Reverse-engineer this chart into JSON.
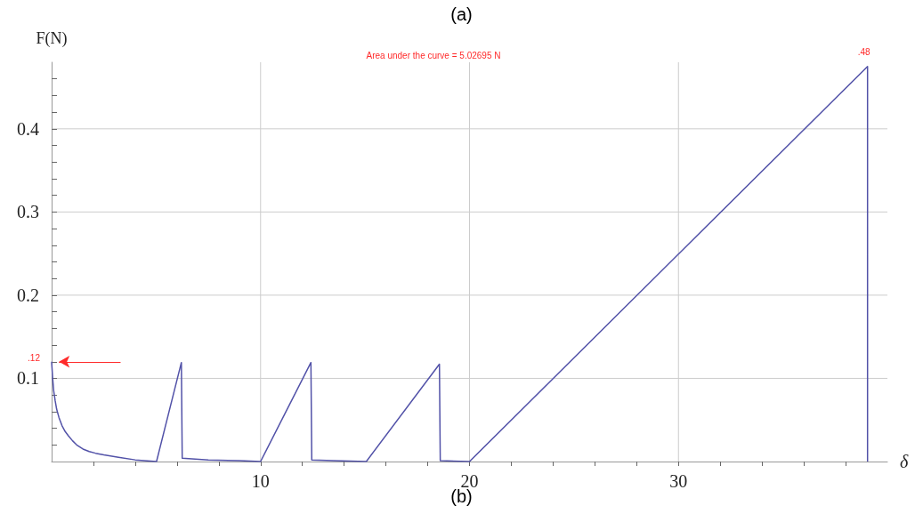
{
  "chart_data": {
    "type": "line",
    "xlabel": "δ",
    "ylabel": "F(N)",
    "annotations": [
      "(a)",
      "Area under the curve = 5.02695 N",
      "(b)",
      {
        "text": ".12",
        "x": 0,
        "y": 0.12
      },
      {
        "text": ".48",
        "x": 39.05,
        "y": 0.475
      }
    ],
    "series": [
      {
        "color": "#5252a8",
        "x": [
          0,
          0.05,
          0.1,
          0.17,
          0.24,
          0.35,
          0.5,
          0.65,
          0.8,
          1,
          1.2,
          1.5,
          1.8,
          2.1,
          2.5,
          3.2,
          4,
          5.02,
          6.21,
          6.25,
          7.5,
          9,
          10,
          12.41,
          12.45,
          13.5,
          15.06,
          18.56,
          18.6,
          20,
          39.05,
          39.05
        ],
        "values": [
          0.12,
          0.1,
          0.085,
          0.073,
          0.063,
          0.053,
          0.043,
          0.036,
          0.031,
          0.025,
          0.02,
          0.015,
          0.012,
          0.01,
          0.008,
          0.005,
          0.002,
          0,
          0.119,
          0.004,
          0.002,
          0.001,
          0,
          0.119,
          0.002,
          0.001,
          0,
          0.117,
          0.001,
          0,
          0.475,
          0
        ]
      }
    ],
    "xlim": [
      0,
      40
    ],
    "ylim": [
      0,
      0.48
    ],
    "xticks": [
      {
        "value": 2,
        "label": null
      },
      {
        "value": 4,
        "label": null
      },
      {
        "value": 6,
        "label": null
      },
      {
        "value": 8,
        "label": null
      },
      10,
      {
        "value": 12,
        "label": null
      },
      {
        "value": 14,
        "label": null
      },
      {
        "value": 16,
        "label": null
      },
      {
        "value": 18,
        "label": null
      },
      20,
      {
        "value": 22,
        "label": null
      },
      {
        "value": 24,
        "label": null
      },
      {
        "value": 26,
        "label": null
      },
      {
        "value": 28,
        "label": null
      },
      30,
      {
        "value": 32,
        "label": null
      },
      {
        "value": 34,
        "label": null
      },
      {
        "value": 36,
        "label": null
      },
      {
        "value": 38,
        "label": null
      }
    ],
    "yticks": [
      {
        "value": 0.02,
        "label": null
      },
      {
        "value": 0.04,
        "label": null
      },
      {
        "value": 0.06,
        "label": null
      },
      {
        "value": 0.08,
        "label": null
      },
      0.1,
      {
        "value": 0.12,
        "label": null
      },
      {
        "value": 0.14,
        "label": null
      },
      {
        "value": 0.16,
        "label": null
      },
      {
        "value": 0.18,
        "label": null
      },
      0.2,
      {
        "value": 0.22,
        "label": null
      },
      {
        "value": 0.24,
        "label": null
      },
      {
        "value": 0.26,
        "label": null
      },
      {
        "value": 0.28,
        "label": null
      },
      0.3,
      {
        "value": 0.32,
        "label": null
      },
      {
        "value": 0.34,
        "label": null
      },
      {
        "value": 0.36,
        "label": null
      },
      {
        "value": 0.38,
        "label": null
      },
      0.4,
      {
        "value": 0.42,
        "label": null
      },
      {
        "value": 0.44,
        "label": null
      },
      {
        "value": 0.46,
        "label": null
      }
    ],
    "grid": true
  }
}
